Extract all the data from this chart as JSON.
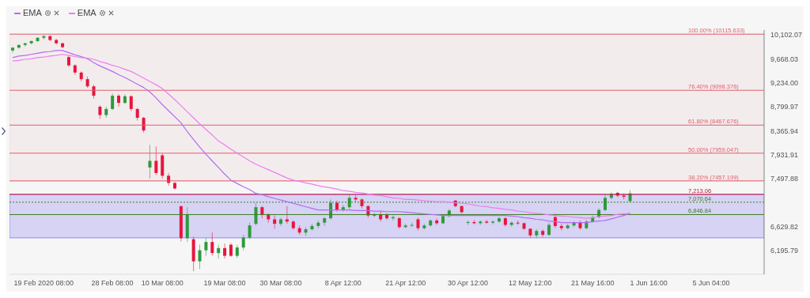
{
  "chart_data": {
    "type": "candlestick",
    "categories": [
      null,
      null,
      null,
      null,
      null,
      "19 Feb 2020 08:00",
      null,
      null,
      null,
      null,
      null,
      null,
      null,
      null,
      null,
      null,
      "28 Feb 08:00",
      null,
      null,
      null,
      null,
      null,
      null,
      null,
      "10 Mar 08:00",
      null,
      null,
      null,
      null,
      null,
      null,
      null,
      null,
      null,
      "19 Mar 08:00",
      null,
      null,
      null,
      null,
      null,
      null,
      null,
      null,
      "30 Mar 08:00",
      null,
      null,
      null,
      null,
      null,
      null,
      null,
      null,
      null,
      "8 Apr 12:00",
      null,
      null,
      null,
      null,
      null,
      null,
      null,
      null,
      null,
      "21 Apr 12:00",
      null,
      null,
      null,
      null,
      null,
      null,
      null,
      null,
      null,
      "30 Apr 12:00",
      null,
      null,
      null,
      null,
      null,
      null,
      null,
      null,
      null,
      "12 May 12:00",
      null,
      null,
      null,
      null,
      null,
      null,
      null,
      null,
      null,
      "21 May 16:00",
      null,
      null,
      null,
      null,
      null,
      null,
      null,
      null,
      "1 Jun 16:00",
      null,
      null,
      null,
      null,
      null,
      null,
      null,
      null,
      null,
      "5 Jun 04:00",
      null,
      null,
      null,
      null,
      null,
      null,
      null,
      null
    ],
    "ohlc": [
      [
        9820,
        9880,
        9780,
        9870
      ],
      [
        9870,
        9930,
        9850,
        9920
      ],
      [
        9920,
        9960,
        9890,
        9950
      ],
      [
        9950,
        10000,
        9930,
        9990
      ],
      [
        9990,
        10060,
        9970,
        10050
      ],
      [
        10050,
        10100,
        10020,
        10080
      ],
      [
        10080,
        10090,
        9990,
        10010
      ],
      [
        10010,
        10030,
        9930,
        9950
      ],
      [
        9950,
        9960,
        9860,
        9880
      ],
      [
        9700,
        9720,
        9520,
        9550
      ],
      [
        9550,
        9570,
        9380,
        9420
      ],
      [
        9420,
        9440,
        9260,
        9300
      ],
      [
        9300,
        9350,
        9140,
        9170
      ],
      [
        9170,
        9200,
        8950,
        9000
      ],
      [
        8800,
        8830,
        8580,
        8650
      ],
      [
        8650,
        8800,
        8600,
        8760
      ],
      [
        8760,
        9040,
        8740,
        9000
      ],
      [
        9000,
        9030,
        8800,
        8870
      ],
      [
        8870,
        9030,
        8850,
        8990
      ],
      [
        8990,
        9010,
        8720,
        8760
      ],
      [
        8760,
        8780,
        8550,
        8600
      ],
      [
        8600,
        8620,
        8330,
        8370
      ],
      [
        7700,
        8110,
        7500,
        7820
      ],
      [
        7820,
        8080,
        7560,
        7600
      ],
      [
        7920,
        7960,
        7500,
        7550
      ],
      [
        7550,
        7600,
        7370,
        7420
      ],
      [
        7420,
        7440,
        7300,
        7320
      ],
      [
        7000,
        7000,
        6360,
        6420
      ],
      [
        6420,
        6980,
        6350,
        6850
      ],
      [
        6400,
        6450,
        5820,
        6000
      ],
      [
        6000,
        6300,
        5860,
        6200
      ],
      [
        6200,
        6420,
        6100,
        6350
      ],
      [
        6350,
        6520,
        6100,
        6150
      ],
      [
        6150,
        6300,
        6050,
        6240
      ],
      [
        6240,
        6320,
        6050,
        6100
      ],
      [
        6300,
        6330,
        6080,
        6100
      ],
      [
        6100,
        6300,
        6060,
        6250
      ],
      [
        6250,
        6480,
        6200,
        6430
      ],
      [
        6430,
        6700,
        6400,
        6650
      ],
      [
        6680,
        7060,
        6650,
        6980
      ],
      [
        6980,
        7000,
        6780,
        6840
      ],
      [
        6840,
        6870,
        6700,
        6760
      ],
      [
        6760,
        6830,
        6590,
        6680
      ],
      [
        6680,
        6790,
        6640,
        6760
      ],
      [
        6760,
        7000,
        6680,
        6720
      ],
      [
        6720,
        6740,
        6570,
        6600
      ],
      [
        6600,
        6650,
        6480,
        6520
      ],
      [
        6520,
        6620,
        6460,
        6580
      ],
      [
        6580,
        6680,
        6560,
        6640
      ],
      [
        6640,
        6740,
        6600,
        6700
      ],
      [
        6700,
        6800,
        6640,
        6780
      ],
      [
        6780,
        7120,
        6760,
        7060
      ],
      [
        7060,
        7100,
        6900,
        6940
      ],
      [
        6940,
        7020,
        6900,
        6980
      ],
      [
        6980,
        7200,
        6950,
        7150
      ],
      [
        7150,
        7200,
        7080,
        7120
      ],
      [
        7120,
        7140,
        6960,
        7000
      ],
      [
        7000,
        7010,
        6790,
        6830
      ],
      [
        6830,
        6880,
        6800,
        6840
      ],
      [
        6840,
        6900,
        6720,
        6760
      ],
      [
        6850,
        6870,
        6750,
        6780
      ],
      [
        6780,
        6830,
        6740,
        6800
      ],
      [
        6780,
        6800,
        6590,
        6620
      ],
      [
        6620,
        6680,
        6600,
        6650
      ],
      [
        6650,
        6700,
        6620,
        6660
      ],
      [
        6760,
        6790,
        6560,
        6600
      ],
      [
        6600,
        6680,
        6580,
        6650
      ],
      [
        6650,
        6760,
        6630,
        6740
      ],
      [
        6740,
        6780,
        6660,
        6690
      ],
      [
        6690,
        6840,
        6670,
        6820
      ],
      [
        6820,
        6950,
        6800,
        6920
      ],
      [
        7100,
        7110,
        6980,
        7000
      ],
      [
        7000,
        7010,
        6870,
        6890
      ],
      [
        6700,
        6740,
        6660,
        6710
      ],
      [
        6710,
        6750,
        6670,
        6690
      ],
      [
        6690,
        6740,
        6660,
        6720
      ],
      [
        6720,
        6750,
        6680,
        6700
      ],
      [
        6700,
        6740,
        6670,
        6720
      ],
      [
        6720,
        6800,
        6700,
        6780
      ],
      [
        6780,
        6800,
        6630,
        6660
      ],
      [
        6660,
        6720,
        6630,
        6700
      ],
      [
        6700,
        6740,
        6660,
        6690
      ],
      [
        6690,
        6700,
        6570,
        6590
      ],
      [
        6590,
        6600,
        6430,
        6470
      ],
      [
        6470,
        6580,
        6420,
        6550
      ],
      [
        6550,
        6580,
        6440,
        6480
      ],
      [
        6480,
        6700,
        6460,
        6660
      ],
      [
        6800,
        6860,
        6600,
        6640
      ],
      [
        6640,
        6680,
        6560,
        6600
      ],
      [
        6600,
        6680,
        6580,
        6650
      ],
      [
        6650,
        6730,
        6620,
        6700
      ],
      [
        6700,
        6740,
        6570,
        6600
      ],
      [
        6600,
        6750,
        6580,
        6720
      ],
      [
        6720,
        6830,
        6700,
        6800
      ],
      [
        6800,
        6960,
        6780,
        6930
      ],
      [
        6930,
        7200,
        6910,
        7150
      ],
      [
        7150,
        7250,
        7120,
        7220
      ],
      [
        7240,
        7260,
        7160,
        7190
      ],
      [
        7190,
        7230,
        7120,
        7170
      ],
      [
        7090,
        7290,
        7080,
        7230
      ],
      null,
      null,
      null,
      null,
      null,
      null,
      null,
      null,
      null,
      null,
      null,
      null,
      null,
      null,
      null,
      null,
      null,
      null,
      null,
      null,
      null
    ],
    "series": [
      {
        "name": "EMA",
        "type": "line",
        "color": "#b36cf0",
        "values": [
          9690,
          9720,
          9730,
          9750,
          9770,
          9790,
          9800,
          9820,
          9820,
          9780,
          9740,
          9710,
          9670,
          9600,
          9540,
          9490,
          9440,
          9380,
          9330,
          9270,
          9210,
          9150,
          9070,
          8960,
          8840,
          8730,
          8620,
          8510,
          8350,
          8210,
          8070,
          7940,
          7820,
          7700,
          7580,
          7470,
          7410,
          7350,
          7300,
          7230,
          7210,
          7170,
          7140,
          7110,
          7080,
          7050,
          7020,
          6990,
          6960,
          6930,
          6930,
          6930,
          6930,
          6930,
          6930,
          6920,
          6920,
          6920,
          6910,
          6910,
          6900,
          6900,
          6900,
          6890,
          6880,
          6870,
          6860,
          6850,
          6840,
          6830,
          6830,
          6830,
          6830,
          6830,
          6830,
          6830,
          6830,
          6830,
          6830,
          6830,
          6820,
          6810,
          6790,
          6780,
          6760,
          6750,
          6730,
          6720,
          6700,
          6700,
          6700,
          6700,
          6700,
          6720,
          6730,
          6740,
          6770,
          6800,
          6830,
          6870,
          null,
          null,
          null,
          null,
          null,
          null,
          null,
          null,
          null,
          null,
          null,
          null,
          null,
          null,
          null,
          null,
          null,
          null,
          null,
          null,
          null
        ]
      },
      {
        "name": "EMA",
        "type": "line",
        "color": "#f07cf0",
        "values": [
          9630,
          9640,
          9660,
          9670,
          9690,
          9700,
          9720,
          9730,
          9750,
          9730,
          9710,
          9690,
          9680,
          9660,
          9620,
          9590,
          9550,
          9520,
          9480,
          9440,
          9380,
          9320,
          9260,
          9200,
          9130,
          9030,
          8930,
          8820,
          8710,
          8600,
          8490,
          8390,
          8290,
          8180,
          8110,
          8030,
          7960,
          7890,
          7820,
          7760,
          7710,
          7660,
          7610,
          7560,
          7510,
          7470,
          7450,
          7420,
          7400,
          7370,
          7350,
          7330,
          7310,
          7280,
          7270,
          7250,
          7240,
          7220,
          7200,
          7190,
          7170,
          7150,
          7140,
          7120,
          7120,
          7110,
          7100,
          7090,
          7080,
          7080,
          7070,
          7060,
          7050,
          7040,
          7020,
          7000,
          6990,
          6970,
          6960,
          6940,
          6930,
          6910,
          6900,
          6880,
          6870,
          6860,
          6840,
          6830,
          6820,
          6810,
          6800,
          6790,
          6780,
          6790,
          6810,
          6820,
          6830,
          6850,
          6860,
          6870,
          null,
          null,
          null,
          null,
          null,
          null,
          null,
          null,
          null,
          null,
          null,
          null,
          null,
          null,
          null,
          null,
          null,
          null,
          null,
          null,
          null
        ]
      }
    ],
    "ylim": [
      5765,
      10190
    ],
    "yticks": [
      {
        "value": 6195.79,
        "label": "6,195.79"
      },
      {
        "value": 6629.82,
        "label": "6,629.82"
      },
      {
        "value": 7497.88,
        "label": "7,497.88"
      },
      {
        "value": 7931.91,
        "label": "7,931.91"
      },
      {
        "value": 8365.94,
        "label": "8,365.94"
      },
      {
        "value": 8799.97,
        "label": "8,799.97"
      },
      {
        "value": 9234.0,
        "label": "9,234.00"
      },
      {
        "value": 9668.03,
        "label": "9,668.03"
      },
      {
        "value": 10102.07,
        "label": "10,102.07"
      }
    ],
    "ref_lines": [
      {
        "axis": "y",
        "value": 10115.633,
        "label": "100.00% (10115.633)",
        "color": "#e0606e"
      },
      {
        "axis": "y",
        "value": 9098.376,
        "label": "76.40% (9098.376)",
        "color": "#e0606e"
      },
      {
        "axis": "y",
        "value": 8467.676,
        "label": "61.80% (8467.676)",
        "color": "#e0606e"
      },
      {
        "axis": "y",
        "value": 7959.047,
        "label": "50.00% (7959.047)",
        "color": "#e0606e"
      },
      {
        "axis": "y",
        "value": 7457.199,
        "label": "38.20% (7457.199)",
        "color": "#e0606e"
      },
      {
        "axis": "y",
        "value": 7213.06,
        "label": "7,213.06",
        "color": "#c8102e"
      },
      {
        "axis": "y",
        "value": 7070.64,
        "label": "7,070.64",
        "color": "#3f7d20",
        "line_style": "dotted"
      },
      {
        "axis": "y",
        "value": 6846.84,
        "label": "6,846.84",
        "color": "#3f7d20"
      }
    ],
    "bands": [
      {
        "axis": "y",
        "from": 7457.199,
        "to": 10115.633,
        "color": "#ecd3d7"
      },
      {
        "axis": "y",
        "from": 6425,
        "to": 7213.06,
        "color": "#8a82f0"
      }
    ],
    "legend": "top left",
    "marker": "none",
    "line_style": "solid"
  }
}
